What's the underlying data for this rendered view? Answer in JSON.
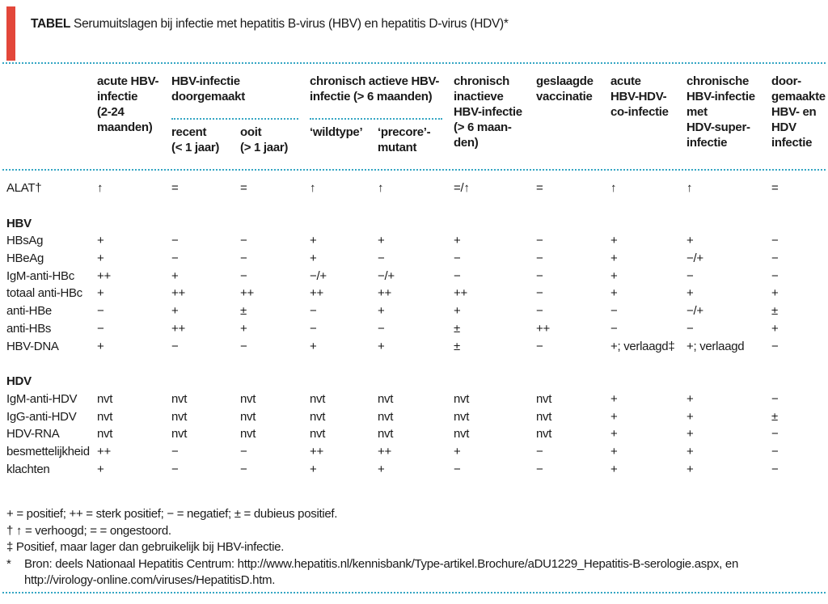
{
  "title": {
    "label": "TABEL",
    "text": "Serumuitslagen bij infectie met hepatitis B-virus (HBV) en hepatitis D-virus (HDV)*"
  },
  "accent_colors": {
    "red_bar": "#e3473a",
    "dotted_rule": "#35a6c4"
  },
  "table": {
    "header": {
      "col_label": "",
      "col_acute": "acute HBV-\ninfectie\n(2-24\nmaanden)",
      "group_doorgemaakt": {
        "title": "HBV-infectie\ndoorgemaakt",
        "sub": [
          "recent\n(< 1 jaar)",
          "ooit\n(> 1 jaar)"
        ]
      },
      "group_chronisch_actief": {
        "title": "chronisch actieve HBV-\ninfectie (> 6 maanden)",
        "sub": [
          "‘wildtype’",
          "‘precore’-\nmutant"
        ]
      },
      "col_chronisch_inactief": "chronisch\ninactieve\nHBV-infectie\n(> 6 maan-\nden)",
      "col_vaccinatie": "geslaagde\nvaccinatie",
      "col_co_infectie": "acute\nHBV-HDV-\nco-infectie",
      "col_superinfectie": "chronische\nHBV-infectie\nmet\nHDV-super-\ninfectie",
      "col_doorgemaakte_hbv_hdv": "door-\ngemaakte\nHBV- en\nHDV\ninfectie"
    },
    "rows": [
      {
        "type": "data",
        "label": "ALAT†",
        "values": [
          "↑",
          "=",
          "=",
          "↑",
          "↑",
          "=/↑",
          "=",
          "↑",
          "↑",
          "="
        ]
      },
      {
        "type": "section",
        "label": "HBV"
      },
      {
        "type": "data",
        "label": "HBsAg",
        "values": [
          "+",
          "−",
          "−",
          "+",
          "+",
          "+",
          "−",
          "+",
          "+",
          "−"
        ]
      },
      {
        "type": "data",
        "label": "HBeAg",
        "values": [
          "+",
          "−",
          "−",
          "+",
          "−",
          "−",
          "−",
          "+",
          "−/+",
          "−"
        ]
      },
      {
        "type": "data",
        "label": "IgM-anti-HBc",
        "values": [
          "++",
          "+",
          "−",
          "−/+",
          "−/+",
          "−",
          "−",
          "+",
          "−",
          "−"
        ]
      },
      {
        "type": "data",
        "label": "totaal anti-HBc",
        "values": [
          "+",
          "++",
          "++",
          "++",
          "++",
          "++",
          "−",
          "+",
          "+",
          "+"
        ]
      },
      {
        "type": "data",
        "label": "anti-HBe",
        "values": [
          "−",
          "+",
          "±",
          "−",
          "+",
          "+",
          "−",
          "−",
          "−/+",
          "±"
        ]
      },
      {
        "type": "data",
        "label": "anti-HBs",
        "values": [
          "−",
          "++",
          "+",
          "−",
          "−",
          "±",
          "++",
          "−",
          "−",
          "+"
        ]
      },
      {
        "type": "data",
        "label": "HBV-DNA",
        "values": [
          "+",
          "−",
          "−",
          "+",
          "+",
          "±",
          "−",
          "+; verlaagd‡",
          "+; verlaagd",
          "−"
        ]
      },
      {
        "type": "section",
        "label": "HDV"
      },
      {
        "type": "data",
        "label": "IgM-anti-HDV",
        "values": [
          "nvt",
          "nvt",
          "nvt",
          "nvt",
          "nvt",
          "nvt",
          "nvt",
          "+",
          "+",
          "−"
        ]
      },
      {
        "type": "data",
        "label": "IgG-anti-HDV",
        "values": [
          "nvt",
          "nvt",
          "nvt",
          "nvt",
          "nvt",
          "nvt",
          "nvt",
          "+",
          "+",
          "±"
        ]
      },
      {
        "type": "data",
        "label": "HDV-RNA",
        "values": [
          "nvt",
          "nvt",
          "nvt",
          "nvt",
          "nvt",
          "nvt",
          "nvt",
          "+",
          "+",
          "−"
        ]
      },
      {
        "type": "data",
        "label": "besmettelijkheid",
        "values": [
          "++",
          "−",
          "−",
          "++",
          "++",
          "+",
          "−",
          "+",
          "+",
          "−"
        ]
      },
      {
        "type": "data",
        "label": "klachten",
        "values": [
          "+",
          "−",
          "−",
          "+",
          "+",
          "−",
          "−",
          "+",
          "+",
          "−"
        ]
      }
    ]
  },
  "footnotes": [
    {
      "marker": "",
      "text": "+ = positief; ++ = sterk positief; − = negatief; ± = dubieus positief."
    },
    {
      "marker": "",
      "text": "† ↑ = verhoogd; = = ongestoord."
    },
    {
      "marker": "",
      "text": "‡ Positief, maar lager dan gebruikelijk bij HBV-infectie."
    },
    {
      "marker": "*",
      "text": "Bron: deels Nationaal Hepatitis Centrum: http://www.hepatitis.nl/kennisbank/Type-artikel.Brochure/aDU1229_Hepatitis-B-serologie.aspx, en\nhttp://virology-online.com/viruses/HepatitisD.htm."
    }
  ]
}
